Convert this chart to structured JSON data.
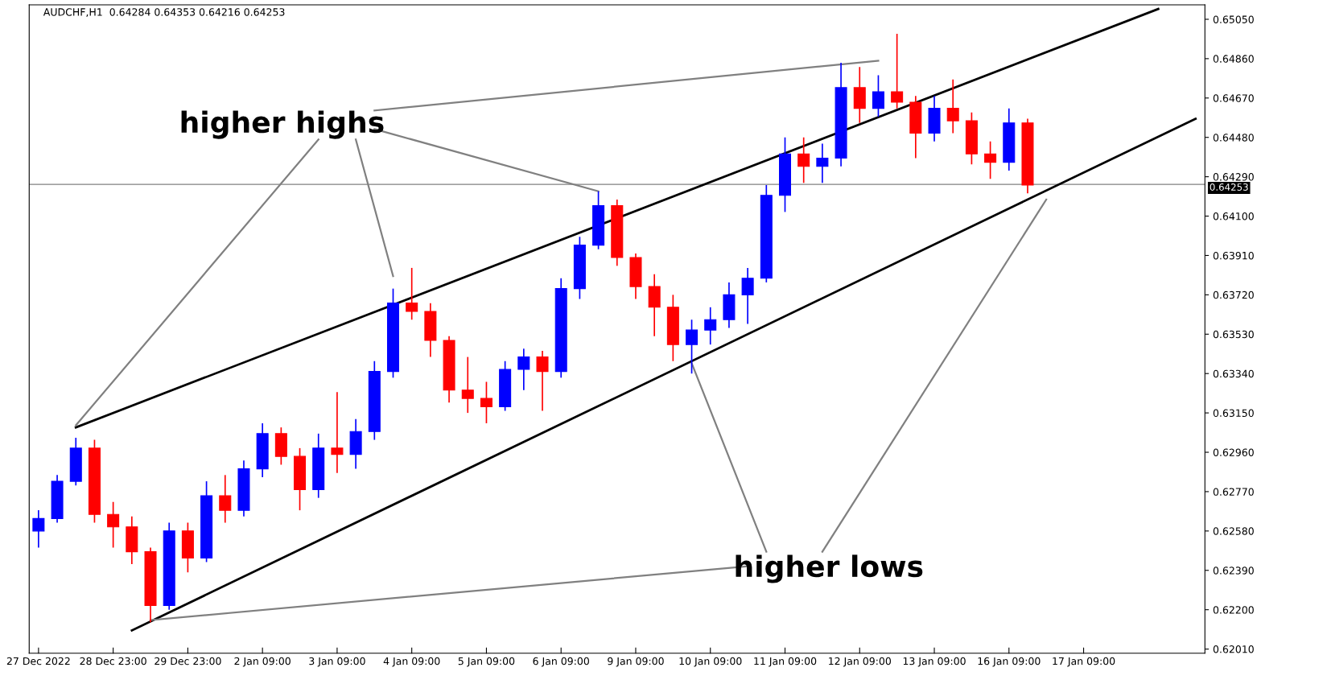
{
  "chart_data": {
    "type": "candlestick",
    "title": "AUDCHF,H1  0.64284 0.64353 0.64216 0.64253",
    "categories": [
      "27 Dec 2022",
      null,
      null,
      null,
      "28 Dec 23:00",
      null,
      null,
      null,
      "29 Dec 23:00",
      null,
      null,
      null,
      "2 Jan 09:00",
      null,
      null,
      null,
      "3 Jan 09:00",
      null,
      null,
      null,
      "4 Jan 09:00",
      null,
      null,
      null,
      "5 Jan 09:00",
      null,
      null,
      null,
      "6 Jan 09:00",
      null,
      null,
      null,
      "9 Jan 09:00",
      null,
      null,
      null,
      "10 Jan 09:00",
      null,
      null,
      null,
      "11 Jan 09:00",
      null,
      null,
      null,
      "12 Jan 09:00",
      null,
      null,
      null,
      "13 Jan 09:00",
      null,
      null,
      null,
      "16 Jan 09:00",
      null,
      null,
      null,
      "17 Jan 09:00",
      null,
      null,
      null,
      null,
      null,
      null
    ],
    "ohlc": [
      [
        0.6258,
        0.6268,
        0.625,
        0.6264
      ],
      [
        0.6264,
        0.6285,
        0.6262,
        0.6282
      ],
      [
        0.6282,
        0.6303,
        0.628,
        0.6298
      ],
      [
        0.6298,
        0.6302,
        0.6262,
        0.6266
      ],
      [
        0.6266,
        0.6272,
        0.625,
        0.626
      ],
      [
        0.626,
        0.6265,
        0.6242,
        0.6248
      ],
      [
        0.6248,
        0.625,
        0.6214,
        0.6222
      ],
      [
        0.6222,
        0.6262,
        0.622,
        0.6258
      ],
      [
        0.6258,
        0.6262,
        0.6238,
        0.6245
      ],
      [
        0.6245,
        0.6282,
        0.6243,
        0.6275
      ],
      [
        0.6275,
        0.6285,
        0.6262,
        0.6268
      ],
      [
        0.6268,
        0.6292,
        0.6265,
        0.6288
      ],
      [
        0.6288,
        0.631,
        0.6284,
        0.6305
      ],
      [
        0.6305,
        0.6308,
        0.629,
        0.6294
      ],
      [
        0.6294,
        0.6298,
        0.6268,
        0.6278
      ],
      [
        0.6278,
        0.6305,
        0.6274,
        0.6298
      ],
      [
        0.6298,
        0.6325,
        0.6286,
        0.6295
      ],
      [
        0.6295,
        0.6312,
        0.6288,
        0.6306
      ],
      [
        0.6306,
        0.634,
        0.6302,
        0.6335
      ],
      [
        0.6335,
        0.6375,
        0.6332,
        0.6368
      ],
      [
        0.6368,
        0.6385,
        0.636,
        0.6364
      ],
      [
        0.6364,
        0.6368,
        0.6342,
        0.635
      ],
      [
        0.635,
        0.6352,
        0.632,
        0.6326
      ],
      [
        0.6326,
        0.6342,
        0.6315,
        0.6322
      ],
      [
        0.6322,
        0.633,
        0.631,
        0.6318
      ],
      [
        0.6318,
        0.634,
        0.6316,
        0.6336
      ],
      [
        0.6336,
        0.6346,
        0.6326,
        0.6342
      ],
      [
        0.6342,
        0.6345,
        0.6316,
        0.6335
      ],
      [
        0.6335,
        0.638,
        0.6332,
        0.6375
      ],
      [
        0.6375,
        0.64,
        0.637,
        0.6396
      ],
      [
        0.6396,
        0.6422,
        0.6394,
        0.6415
      ],
      [
        0.6415,
        0.6418,
        0.6386,
        0.639
      ],
      [
        0.639,
        0.6392,
        0.637,
        0.6376
      ],
      [
        0.6376,
        0.6382,
        0.6352,
        0.6366
      ],
      [
        0.6366,
        0.6372,
        0.634,
        0.6348
      ],
      [
        0.6348,
        0.636,
        0.6334,
        0.6355
      ],
      [
        0.6355,
        0.6366,
        0.6348,
        0.636
      ],
      [
        0.636,
        0.6378,
        0.6356,
        0.6372
      ],
      [
        0.6372,
        0.6385,
        0.6358,
        0.638
      ],
      [
        0.638,
        0.6425,
        0.6378,
        0.642
      ],
      [
        0.642,
        0.6448,
        0.6412,
        0.644
      ],
      [
        0.644,
        0.6448,
        0.6426,
        0.6434
      ],
      [
        0.6434,
        0.6445,
        0.6426,
        0.6438
      ],
      [
        0.6438,
        0.6484,
        0.6434,
        0.6472
      ],
      [
        0.6472,
        0.6482,
        0.6455,
        0.6462
      ],
      [
        0.6462,
        0.6478,
        0.6458,
        0.647
      ],
      [
        0.647,
        0.6498,
        0.6462,
        0.6465
      ],
      [
        0.6465,
        0.6468,
        0.6438,
        0.645
      ],
      [
        0.645,
        0.6468,
        0.6446,
        0.6462
      ],
      [
        0.6462,
        0.6476,
        0.645,
        0.6456
      ],
      [
        0.6456,
        0.646,
        0.6435,
        0.644
      ],
      [
        0.644,
        0.6446,
        0.6428,
        0.6436
      ],
      [
        0.6436,
        0.6462,
        0.6432,
        0.6455
      ],
      [
        0.6455,
        0.6457,
        0.6421,
        0.6425
      ],
      null,
      null,
      null,
      null,
      null,
      null,
      null,
      null,
      null
    ],
    "colors": [
      "#0000ff",
      "#0000ff",
      "#0000ff",
      "#ff0000",
      "#ff0000",
      "#ff0000",
      "#ff0000",
      "#0000ff",
      "#ff0000",
      "#0000ff",
      "#ff0000",
      "#0000ff",
      "#0000ff",
      "#ff0000",
      "#ff0000",
      "#0000ff",
      "#ff0000",
      "#0000ff",
      "#0000ff",
      "#0000ff",
      "#ff0000",
      "#ff0000",
      "#ff0000",
      "#ff0000",
      "#ff0000",
      "#0000ff",
      "#0000ff",
      "#ff0000",
      "#0000ff",
      "#0000ff",
      "#0000ff",
      "#ff0000",
      "#ff0000",
      "#ff0000",
      "#ff0000",
      "#0000ff",
      "#0000ff",
      "#0000ff",
      "#0000ff",
      "#0000ff",
      "#0000ff",
      "#ff0000",
      "#0000ff",
      "#0000ff",
      "#ff0000",
      "#0000ff",
      "#ff0000",
      "#ff0000",
      "#0000ff",
      "#ff0000",
      "#ff0000",
      "#ff0000",
      "#0000ff",
      "#ff0000",
      null,
      null,
      null,
      null,
      null,
      null,
      null,
      null,
      null
    ],
    "series": [
      {
        "type": "line",
        "color": "#000000",
        "values": [
          null,
          null,
          0.6308,
          null,
          null,
          null,
          null,
          null,
          null,
          null,
          null,
          null,
          null,
          null,
          null,
          null,
          null,
          null,
          null,
          null,
          null,
          null,
          null,
          null,
          null,
          null,
          null,
          null,
          null,
          null,
          null,
          null,
          null,
          null,
          null,
          null,
          null,
          null,
          null,
          null,
          null,
          null,
          null,
          null,
          null,
          null,
          null,
          null,
          null,
          null,
          null,
          null,
          null,
          null,
          null,
          null,
          null,
          null,
          null,
          null,
          0.651,
          null,
          null
        ]
      },
      {
        "type": "line",
        "color": "#000000",
        "values": [
          null,
          null,
          null,
          null,
          null,
          0.621,
          null,
          null,
          null,
          null,
          null,
          null,
          null,
          null,
          null,
          null,
          null,
          null,
          null,
          null,
          null,
          null,
          null,
          null,
          null,
          null,
          null,
          null,
          null,
          null,
          null,
          null,
          null,
          null,
          null,
          null,
          null,
          null,
          null,
          null,
          null,
          null,
          null,
          null,
          null,
          null,
          null,
          null,
          null,
          null,
          null,
          null,
          null,
          null,
          null,
          null,
          null,
          null,
          null,
          null,
          null,
          null,
          0.6457
        ]
      },
      {
        "type": "line",
        "color": "#808080",
        "values": [
          null,
          null,
          0.6309,
          null,
          null,
          null,
          null,
          null,
          null,
          null,
          null,
          null,
          null,
          null,
          null,
          0.6447,
          null,
          null,
          null,
          null,
          null,
          null,
          null,
          null,
          null,
          null,
          null,
          null,
          null,
          null,
          null,
          null,
          null,
          null,
          null,
          null,
          null,
          null,
          null,
          null,
          null,
          null,
          null,
          null,
          null,
          null,
          null,
          null,
          null,
          null,
          null,
          null,
          null,
          null,
          null,
          null,
          null,
          null,
          null,
          null,
          null,
          null,
          null
        ]
      },
      {
        "type": "line",
        "color": "#808080",
        "values": [
          null,
          null,
          null,
          null,
          null,
          null,
          null,
          null,
          null,
          null,
          null,
          null,
          null,
          null,
          null,
          null,
          null,
          0.6447,
          null,
          0.6381,
          null,
          null,
          null,
          null,
          null,
          null,
          null,
          null,
          null,
          null,
          null,
          null,
          null,
          null,
          null,
          null,
          null,
          null,
          null,
          null,
          null,
          null,
          null,
          null,
          null,
          null,
          null,
          null,
          null,
          null,
          null,
          null,
          null,
          null,
          null,
          null,
          null,
          null,
          null,
          null,
          null,
          null,
          null
        ]
      },
      {
        "type": "line",
        "color": "#808080",
        "values": [
          null,
          null,
          null,
          null,
          null,
          null,
          null,
          null,
          null,
          null,
          null,
          null,
          null,
          null,
          null,
          null,
          null,
          null,
          0.6452,
          null,
          null,
          null,
          null,
          null,
          null,
          null,
          null,
          null,
          null,
          null,
          0.6422,
          null,
          null,
          null,
          null,
          null,
          null,
          null,
          null,
          null,
          null,
          null,
          null,
          null,
          null,
          null,
          null,
          null,
          null,
          null,
          null,
          null,
          null,
          null,
          null,
          null,
          null,
          null,
          null,
          null,
          null,
          null,
          null
        ]
      },
      {
        "type": "line",
        "color": "#808080",
        "values": [
          null,
          null,
          null,
          null,
          null,
          null,
          null,
          null,
          null,
          null,
          null,
          null,
          null,
          null,
          null,
          null,
          null,
          null,
          0.6461,
          null,
          null,
          null,
          null,
          null,
          null,
          null,
          null,
          null,
          null,
          null,
          null,
          null,
          null,
          null,
          null,
          null,
          null,
          null,
          null,
          null,
          null,
          null,
          null,
          null,
          null,
          0.6485,
          null,
          null,
          null,
          null,
          null,
          null,
          null,
          null,
          null,
          null,
          null,
          null,
          null,
          null,
          null,
          null,
          null
        ]
      },
      {
        "type": "line",
        "color": "#808080",
        "values": [
          null,
          null,
          null,
          null,
          null,
          null,
          null,
          null,
          null,
          null,
          null,
          null,
          null,
          null,
          null,
          null,
          null,
          null,
          null,
          null,
          null,
          null,
          null,
          null,
          null,
          null,
          null,
          null,
          null,
          null,
          null,
          null,
          null,
          null,
          null,
          0.6339,
          null,
          null,
          null,
          0.6248,
          null,
          null,
          null,
          null,
          null,
          null,
          null,
          null,
          null,
          null,
          null,
          null,
          null,
          null,
          null,
          null,
          null,
          null,
          null,
          null,
          null,
          null,
          null
        ]
      },
      {
        "type": "line",
        "color": "#808080",
        "values": [
          null,
          null,
          null,
          null,
          null,
          null,
          null,
          null,
          null,
          null,
          null,
          null,
          null,
          null,
          null,
          null,
          null,
          null,
          null,
          null,
          null,
          null,
          null,
          null,
          null,
          null,
          null,
          null,
          null,
          null,
          null,
          null,
          null,
          null,
          null,
          null,
          null,
          null,
          null,
          null,
          null,
          null,
          0.6248,
          null,
          null,
          null,
          null,
          null,
          null,
          null,
          null,
          null,
          null,
          null,
          0.6418,
          null,
          null,
          null,
          null,
          null,
          null,
          null,
          null
        ]
      },
      {
        "type": "line",
        "color": "#808080",
        "values": [
          null,
          null,
          null,
          null,
          null,
          null,
          0.6215,
          null,
          null,
          null,
          null,
          null,
          null,
          null,
          null,
          null,
          null,
          null,
          null,
          null,
          null,
          null,
          null,
          null,
          null,
          null,
          null,
          null,
          null,
          null,
          null,
          null,
          null,
          null,
          null,
          null,
          null,
          null,
          0.6241,
          null,
          null,
          null,
          null,
          null,
          null,
          null,
          null,
          null,
          null,
          null,
          null,
          null,
          null,
          null,
          null,
          null,
          null,
          null,
          null,
          null,
          null,
          null,
          null
        ]
      }
    ],
    "annotations": [
      "higher highs",
      "higher lows"
    ],
    "ref_lines": [
      {
        "axis": "y",
        "value": 0.64253,
        "label": "0.64253",
        "color": "#808080"
      }
    ],
    "ylim": [
      0.6199,
      0.6512
    ],
    "yticks": [
      {
        "value": 0.6201,
        "label": "0.62010"
      },
      {
        "value": 0.622,
        "label": "0.62200"
      },
      {
        "value": 0.6239,
        "label": "0.62390"
      },
      {
        "value": 0.6258,
        "label": "0.62580"
      },
      {
        "value": 0.6277,
        "label": "0.62770"
      },
      {
        "value": 0.6296,
        "label": "0.62960"
      },
      {
        "value": 0.6315,
        "label": "0.63150"
      },
      {
        "value": 0.6334,
        "label": "0.63340"
      },
      {
        "value": 0.6353,
        "label": "0.63530"
      },
      {
        "value": 0.6372,
        "label": "0.63720"
      },
      {
        "value": 0.6391,
        "label": "0.63910"
      },
      {
        "value": 0.641,
        "label": "0.64100"
      },
      {
        "value": 0.6429,
        "label": "0.64290"
      },
      {
        "value": 0.6448,
        "label": "0.64480"
      },
      {
        "value": 0.6467,
        "label": "0.64670"
      },
      {
        "value": 0.6486,
        "label": "0.64860"
      },
      {
        "value": 0.6505,
        "label": "0.65050"
      }
    ]
  }
}
